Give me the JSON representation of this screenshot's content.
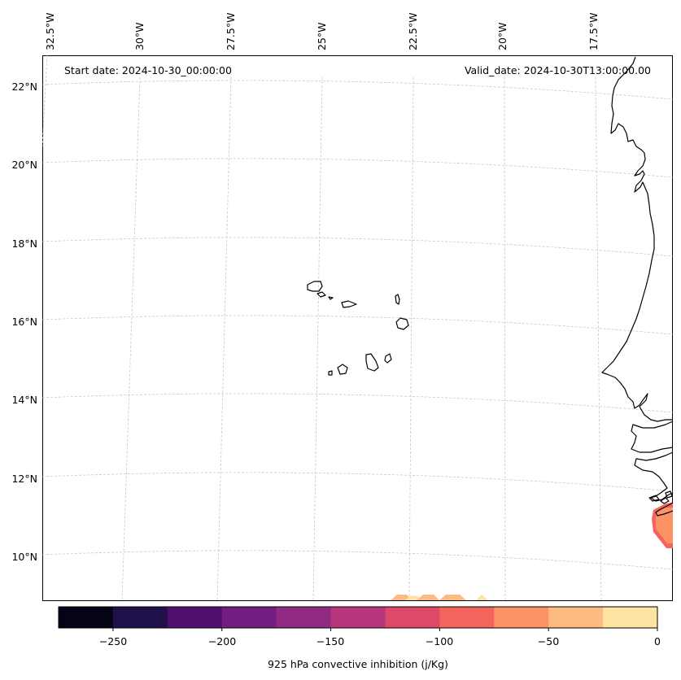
{
  "map": {
    "start_date": "Start date: 2024-10-30_00:00:00",
    "valid_date": "Valid_date: 2024-10-30T13:00:00.00",
    "lon_labels": [
      "32.5°W",
      "30°W",
      "27.5°W",
      "25°W",
      "22.5°W",
      "20°W",
      "17.5°W"
    ],
    "lat_labels": [
      "22°N",
      "20°N",
      "18°N",
      "16°N",
      "14°N",
      "12°N",
      "10°N"
    ],
    "gridlines": true,
    "coastline_color": "#000000",
    "gridline_color": "#c8c8c8"
  },
  "colorbar": {
    "title": "925 hPa convective inhibition (j/Kg)",
    "tick_labels": [
      "−250",
      "−200",
      "−150",
      "−100",
      "−50",
      "0"
    ],
    "levels": [
      -275,
      -250,
      -225,
      -200,
      -175,
      -150,
      -125,
      -100,
      -75,
      -50,
      -25,
      0
    ],
    "colors": [
      "#050417",
      "#20114b",
      "#4f0f6f",
      "#721f81",
      "#912b81",
      "#b5367a",
      "#dd4968",
      "#f3655c",
      "#fd9365",
      "#febb81",
      "#fde4a2"
    ]
  }
}
